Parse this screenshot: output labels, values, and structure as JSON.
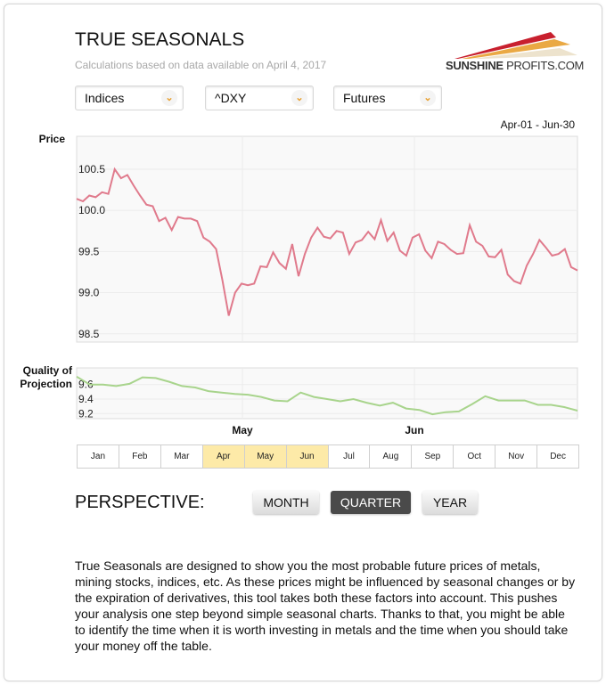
{
  "header": {
    "title": "TRUE SEASONALS",
    "subtitle": "Calculations based on data available on April 4, 2017",
    "logo_bold": "SUNSHINE",
    "logo_rest": " PROFITS.COM"
  },
  "dropdowns": [
    {
      "value": "Indices",
      "icon": "chevron-down-icon"
    },
    {
      "value": "^DXY",
      "icon": "chevron-down-icon"
    },
    {
      "value": "Futures",
      "icon": "chevron-down-icon"
    }
  ],
  "colors": {
    "price_line": "#e07a8c",
    "quality_line": "#a8d48c",
    "selected_month": "#fdeaa8",
    "active_button": "#4a4a4a"
  },
  "chart_data": [
    {
      "type": "line",
      "title": "",
      "ylabel": "Price",
      "date_range": "Apr-01 - Jun-30",
      "x_range": [
        "Apr-01",
        "Jun-30"
      ],
      "x_ticks": [
        "May",
        "Jun"
      ],
      "ylim": [
        98.4,
        100.9
      ],
      "yticks": [
        "98.5",
        "99.0",
        "99.5",
        "100.0",
        "100.5"
      ],
      "grid": true,
      "values": [
        100.14,
        100.11,
        100.18,
        100.16,
        100.22,
        100.2,
        100.5,
        100.39,
        100.43,
        100.3,
        100.18,
        100.07,
        100.05,
        99.87,
        99.91,
        99.76,
        99.92,
        99.9,
        99.9,
        99.87,
        99.67,
        99.62,
        99.53,
        99.15,
        98.72,
        99.0,
        99.11,
        99.09,
        99.11,
        99.32,
        99.31,
        99.49,
        99.36,
        99.29,
        99.59,
        99.2,
        99.47,
        99.67,
        99.79,
        99.68,
        99.66,
        99.75,
        99.73,
        99.47,
        99.61,
        99.64,
        99.74,
        99.65,
        99.88,
        99.63,
        99.73,
        99.51,
        99.45,
        99.67,
        99.71,
        99.51,
        99.42,
        99.62,
        99.59,
        99.52,
        99.47,
        99.48,
        99.82,
        99.62,
        99.57,
        99.44,
        99.43,
        99.52,
        99.22,
        99.14,
        99.11,
        99.33,
        99.47,
        99.64,
        99.55,
        99.45,
        99.47,
        99.53,
        99.31,
        99.27
      ]
    },
    {
      "type": "line",
      "title": "",
      "ylabel": "Quality of Projection",
      "x_range": [
        "Apr-01",
        "Jun-30"
      ],
      "ylim": [
        9.13,
        9.83
      ],
      "yticks": [
        "9.2",
        "9.4",
        "9.6"
      ],
      "grid": true,
      "values": [
        9.71,
        9.6,
        9.6,
        9.58,
        9.61,
        9.7,
        9.69,
        9.64,
        9.58,
        9.56,
        9.51,
        9.49,
        9.47,
        9.46,
        9.43,
        9.38,
        9.37,
        9.49,
        9.43,
        9.4,
        9.37,
        9.4,
        9.35,
        9.31,
        9.35,
        9.27,
        9.25,
        9.19,
        9.22,
        9.23,
        9.33,
        9.44,
        9.38,
        9.38,
        9.38,
        9.32,
        9.32,
        9.29,
        9.24
      ]
    }
  ],
  "month_labels": {
    "may": "May",
    "jun": "Jun"
  },
  "months": [
    {
      "label": "Jan",
      "selected": false
    },
    {
      "label": "Feb",
      "selected": false
    },
    {
      "label": "Mar",
      "selected": false
    },
    {
      "label": "Apr",
      "selected": true
    },
    {
      "label": "May",
      "selected": true
    },
    {
      "label": "Jun",
      "selected": true
    },
    {
      "label": "Jul",
      "selected": false
    },
    {
      "label": "Aug",
      "selected": false
    },
    {
      "label": "Sep",
      "selected": false
    },
    {
      "label": "Oct",
      "selected": false
    },
    {
      "label": "Nov",
      "selected": false
    },
    {
      "label": "Dec",
      "selected": false
    }
  ],
  "perspective": {
    "label": "PERSPECTIVE:",
    "buttons": [
      {
        "label": "MONTH",
        "active": false
      },
      {
        "label": "QUARTER",
        "active": true
      },
      {
        "label": "YEAR",
        "active": false
      }
    ]
  },
  "description": "True Seasonals are designed to show you the most probable future prices of metals, mining stocks, indices, etc. As these prices might be influenced by seasonal changes or by the expiration of derivatives, this tool takes both these factors into account. This pushes your analysis one step beyond simple seasonal charts. Thanks to that, you might be able to identify the time when it is worth investing in metals and the time when you should take your money off the table."
}
